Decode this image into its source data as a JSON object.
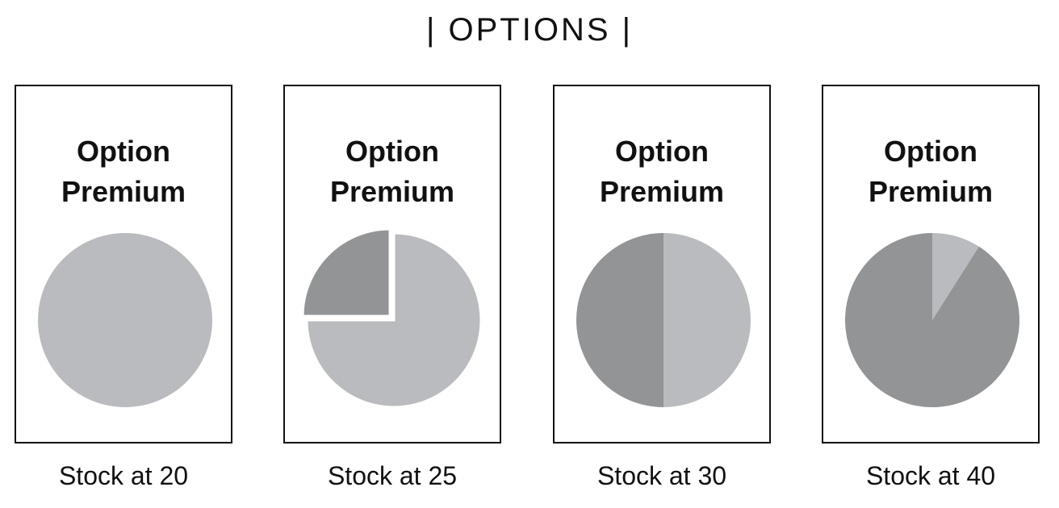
{
  "title": "| OPTIONS |",
  "colors": {
    "light": "#babbbf",
    "dark": "#939496",
    "border": "#111111"
  },
  "chart_data": [
    {
      "type": "pie",
      "title_lines": [
        "Option",
        "Premium"
      ],
      "caption": "Stock at 20",
      "slices": [
        {
          "value": 1.0,
          "color": "light"
        }
      ],
      "exploded": false
    },
    {
      "type": "pie",
      "title_lines": [
        "Option",
        "Premium"
      ],
      "caption": "Stock at 25",
      "slices": [
        {
          "value": 0.75,
          "color": "light"
        },
        {
          "value": 0.25,
          "color": "dark"
        }
      ],
      "exploded": true
    },
    {
      "type": "pie",
      "title_lines": [
        "Option",
        "Premium"
      ],
      "caption": "Stock at 30",
      "slices": [
        {
          "value": 0.5,
          "color": "light"
        },
        {
          "value": 0.5,
          "color": "dark"
        }
      ],
      "exploded": false
    },
    {
      "type": "pie",
      "title_lines": [
        "Option",
        "Premium"
      ],
      "caption": "Stock at 40",
      "slices": [
        {
          "value": 0.09,
          "color": "light"
        },
        {
          "value": 0.91,
          "color": "dark"
        }
      ],
      "exploded": false
    }
  ]
}
